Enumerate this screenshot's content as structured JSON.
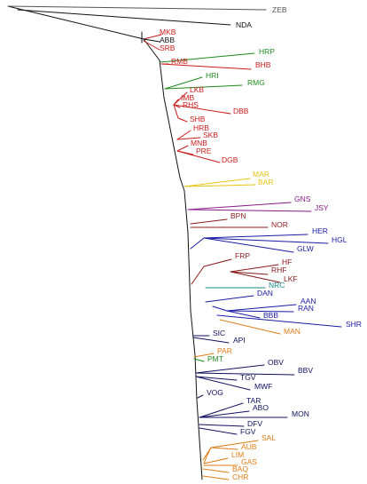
{
  "colors": {
    "black": "#111111",
    "gray": "#555555",
    "red": "#cc1a1a",
    "green": "#1d8a1d",
    "yellow": "#e8c414",
    "purple": "#8a1a8a",
    "darkred": "#8b1a1a",
    "blue": "#1a1aa6",
    "teal": "#1a8a8a",
    "orange": "#e07b16",
    "navy": "#101060"
  },
  "taxa": [
    {
      "label": "ZEB",
      "color": "gray"
    },
    {
      "label": "NDA",
      "color": "black"
    },
    {
      "label": "MKB",
      "color": "red"
    },
    {
      "label": "ABB",
      "color": "black"
    },
    {
      "label": "SRB",
      "color": "red"
    },
    {
      "label": "HRP",
      "color": "green"
    },
    {
      "label": "RMB",
      "color": "red"
    },
    {
      "label": "BHB",
      "color": "red"
    },
    {
      "label": "HRI",
      "color": "green"
    },
    {
      "label": "RMG",
      "color": "green"
    },
    {
      "label": "LKB",
      "color": "red"
    },
    {
      "label": "IMB",
      "color": "red"
    },
    {
      "label": "RHS",
      "color": "red"
    },
    {
      "label": "DBB",
      "color": "red"
    },
    {
      "label": "SHB",
      "color": "red"
    },
    {
      "label": "HRB",
      "color": "red"
    },
    {
      "label": "SKB",
      "color": "red"
    },
    {
      "label": "MNB",
      "color": "red"
    },
    {
      "label": "PRE",
      "color": "red"
    },
    {
      "label": "DGB",
      "color": "red"
    },
    {
      "label": "MAR",
      "color": "yellow"
    },
    {
      "label": "BAR",
      "color": "yellow"
    },
    {
      "label": "GNS",
      "color": "purple"
    },
    {
      "label": "JSY",
      "color": "purple"
    },
    {
      "label": "BPN",
      "color": "darkred"
    },
    {
      "label": "NOR",
      "color": "darkred"
    },
    {
      "label": "HER",
      "color": "blue"
    },
    {
      "label": "HGL",
      "color": "blue"
    },
    {
      "label": "GLW",
      "color": "blue"
    },
    {
      "label": "FRP",
      "color": "darkred"
    },
    {
      "label": "HF",
      "color": "darkred"
    },
    {
      "label": "RHF",
      "color": "darkred"
    },
    {
      "label": "LKF",
      "color": "darkred"
    },
    {
      "label": "NRC",
      "color": "teal"
    },
    {
      "label": "DAN",
      "color": "blue"
    },
    {
      "label": "AAN",
      "color": "blue"
    },
    {
      "label": "RAN",
      "color": "blue"
    },
    {
      "label": "BBB",
      "color": "blue"
    },
    {
      "label": "SHR",
      "color": "blue"
    },
    {
      "label": "MAN",
      "color": "orange"
    },
    {
      "label": "SIC",
      "color": "navy"
    },
    {
      "label": "API",
      "color": "navy"
    },
    {
      "label": "PAR",
      "color": "orange"
    },
    {
      "label": "PMT",
      "color": "green"
    },
    {
      "label": "OBV",
      "color": "navy"
    },
    {
      "label": "BBV",
      "color": "navy"
    },
    {
      "label": "TGV",
      "color": "navy"
    },
    {
      "label": "MWF",
      "color": "navy"
    },
    {
      "label": "VOG",
      "color": "navy"
    },
    {
      "label": "TAR",
      "color": "navy"
    },
    {
      "label": "ABO",
      "color": "navy"
    },
    {
      "label": "MON",
      "color": "navy"
    },
    {
      "label": "DFV",
      "color": "navy"
    },
    {
      "label": "FGV",
      "color": "navy"
    },
    {
      "label": "SAL",
      "color": "orange"
    },
    {
      "label": "AUB",
      "color": "orange"
    },
    {
      "label": "LIM",
      "color": "orange"
    },
    {
      "label": "GAS",
      "color": "orange"
    },
    {
      "label": "BAQ",
      "color": "orange"
    },
    {
      "label": "CHR",
      "color": "orange"
    }
  ]
}
